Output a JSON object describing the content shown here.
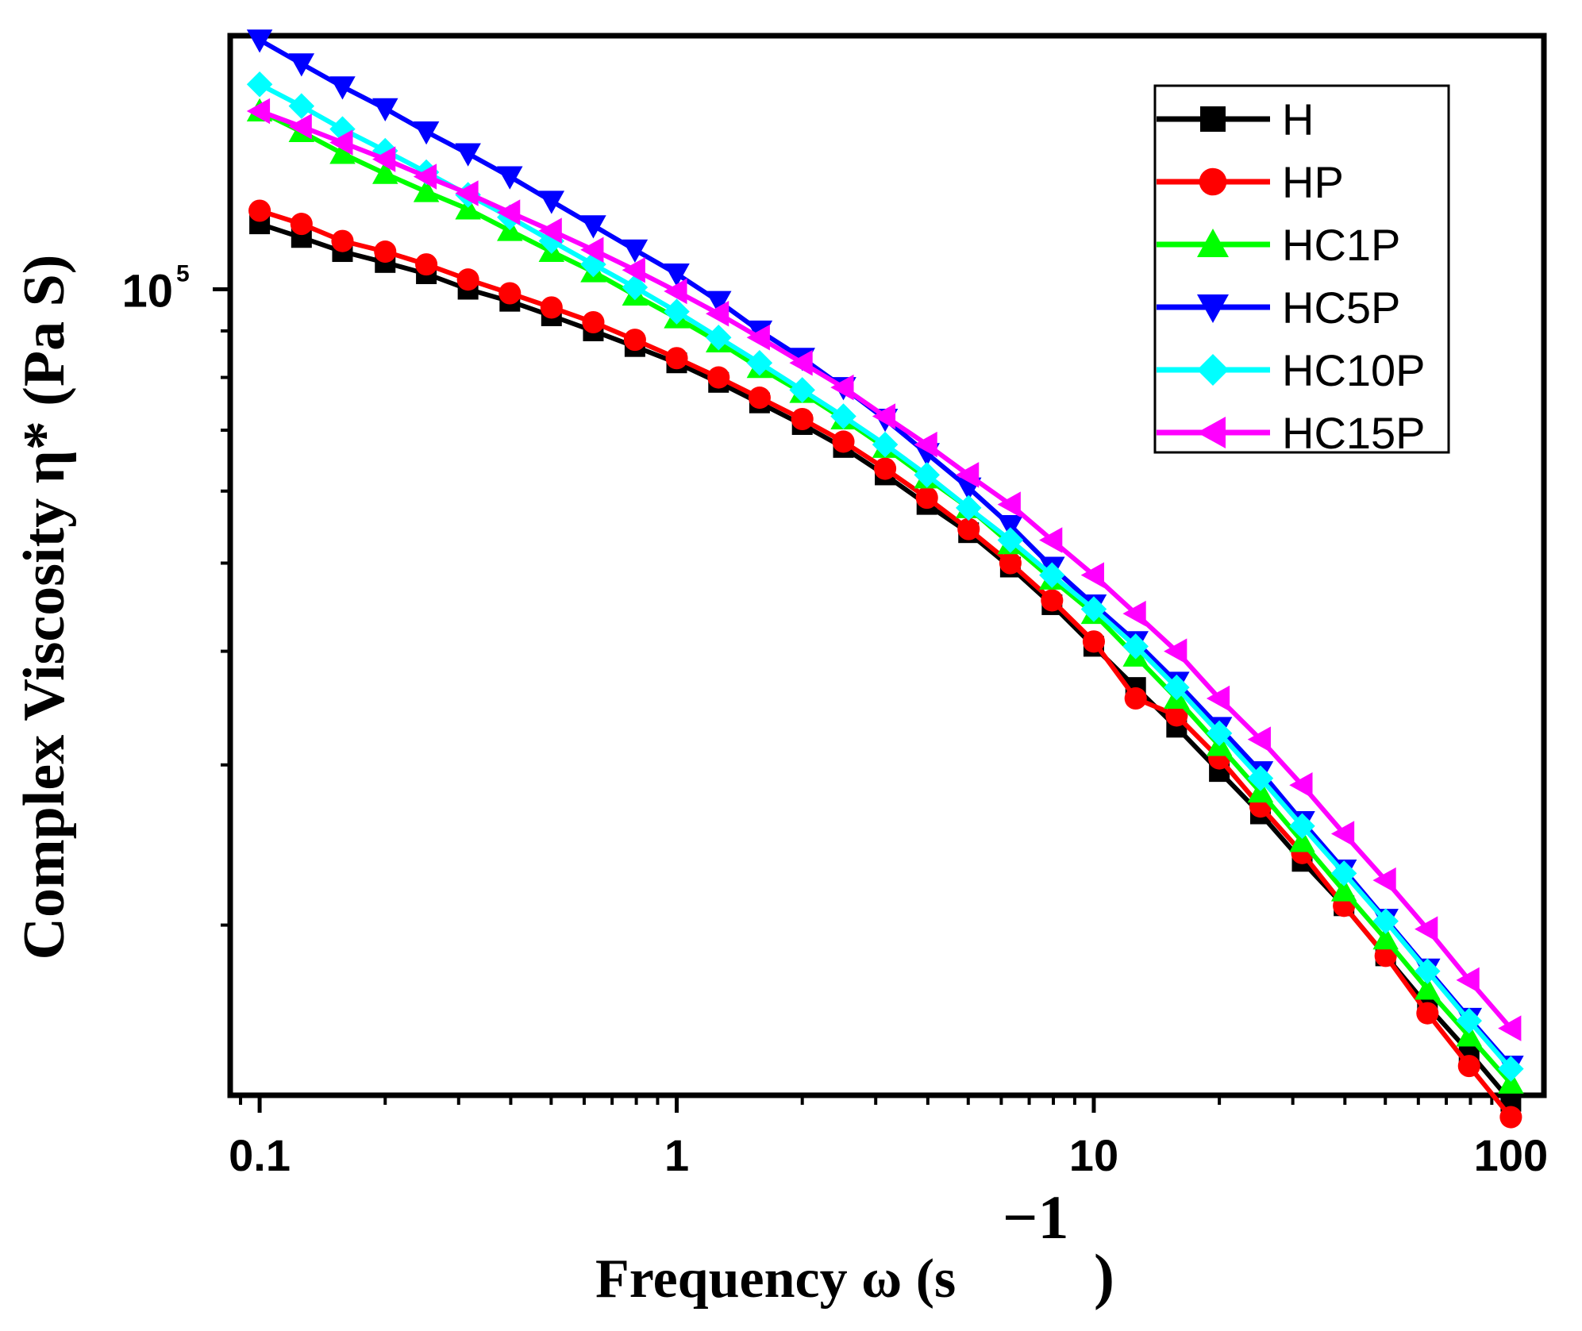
{
  "chart_data": {
    "type": "line",
    "xscale": "log",
    "yscale": "log",
    "xlabel_main": "Frequency ω (s",
    "xlabel_exp": "−1",
    "xlabel_close": ")",
    "ylabel": "Complex Viscosity η*  (Pa S)",
    "xlim": [
      0.085,
      120
    ],
    "ylim": [
      13000,
      190000
    ],
    "x_ticks": [
      {
        "value": 0.1,
        "label": "0.1"
      },
      {
        "value": 1,
        "label": "1"
      },
      {
        "value": 10,
        "label": "10"
      },
      {
        "value": 100,
        "label": "100"
      }
    ],
    "y_tick_main": {
      "value": 100000,
      "base": "10",
      "exp": "5"
    },
    "y_minor_ticks": [
      20000,
      30000,
      40000,
      50000,
      60000,
      70000,
      80000,
      90000,
      200000
    ],
    "legend_position": "top-right",
    "x": [
      0.1,
      0.126,
      0.158,
      0.2,
      0.251,
      0.316,
      0.398,
      0.501,
      0.631,
      0.794,
      1,
      1.26,
      1.58,
      2,
      2.51,
      3.16,
      3.98,
      5.01,
      6.31,
      7.94,
      10,
      12.6,
      15.8,
      20,
      25.1,
      31.6,
      39.8,
      50.1,
      63.1,
      79.4,
      100
    ],
    "series": [
      {
        "name": "H",
        "color": "#000000",
        "marker": "square",
        "values": [
          118000,
          114000,
          110000,
          107000,
          104000,
          100000,
          97000,
          93500,
          90000,
          86500,
          83000,
          79000,
          75000,
          71000,
          67000,
          62500,
          58000,
          54000,
          49500,
          45000,
          40500,
          36500,
          33000,
          29500,
          26500,
          23500,
          21000,
          18500,
          16300,
          14500,
          12800
        ]
      },
      {
        "name": "HP",
        "color": "#ff0000",
        "marker": "circle",
        "values": [
          122000,
          118000,
          113000,
          110000,
          106500,
          102500,
          99000,
          95500,
          92000,
          88000,
          84000,
          80000,
          76000,
          72000,
          68000,
          63500,
          59000,
          54500,
          50000,
          45500,
          41000,
          35500,
          34000,
          30500,
          27000,
          24000,
          21000,
          18500,
          16000,
          14000,
          12300
        ]
      },
      {
        "name": "HC1P",
        "color": "#00ff00",
        "marker": "triangle-up",
        "values": [
          157000,
          149000,
          141000,
          134000,
          128000,
          122500,
          116000,
          110000,
          104500,
          98500,
          93000,
          87500,
          82000,
          77000,
          72000,
          67000,
          62000,
          57500,
          52500,
          48000,
          44000,
          39500,
          35500,
          31500,
          28000,
          24700,
          21800,
          19300,
          17000,
          15100,
          13400
        ]
      },
      {
        "name": "HC5P",
        "color": "#0000ff",
        "marker": "triangle-down",
        "values": [
          188000,
          177000,
          167000,
          158000,
          149000,
          141000,
          133000,
          125000,
          117500,
          110500,
          104000,
          97000,
          90000,
          84000,
          78000,
          72000,
          66000,
          60500,
          55000,
          49500,
          45000,
          41000,
          37000,
          33000,
          29500,
          26000,
          23000,
          20300,
          17900,
          15800,
          14000
        ]
      },
      {
        "name": "HC10P",
        "color": "#00ffff",
        "marker": "diamond",
        "values": [
          168000,
          159000,
          150000,
          142000,
          134500,
          127000,
          120000,
          113000,
          106500,
          100500,
          94500,
          88500,
          83000,
          77500,
          72500,
          67500,
          62500,
          57500,
          53000,
          48500,
          44500,
          40500,
          36500,
          32500,
          29000,
          25700,
          22800,
          20200,
          17800,
          15700,
          13900
        ]
      },
      {
        "name": "HC15P",
        "color": "#ff00ff",
        "marker": "triangle-left",
        "values": [
          157000,
          151000,
          145000,
          139000,
          133000,
          127500,
          121500,
          116000,
          110500,
          105000,
          99500,
          94000,
          88500,
          83000,
          78000,
          72500,
          67500,
          62500,
          58000,
          53000,
          48500,
          44000,
          40000,
          35500,
          32000,
          28500,
          25200,
          22400,
          19800,
          17400,
          15400
        ]
      }
    ]
  }
}
